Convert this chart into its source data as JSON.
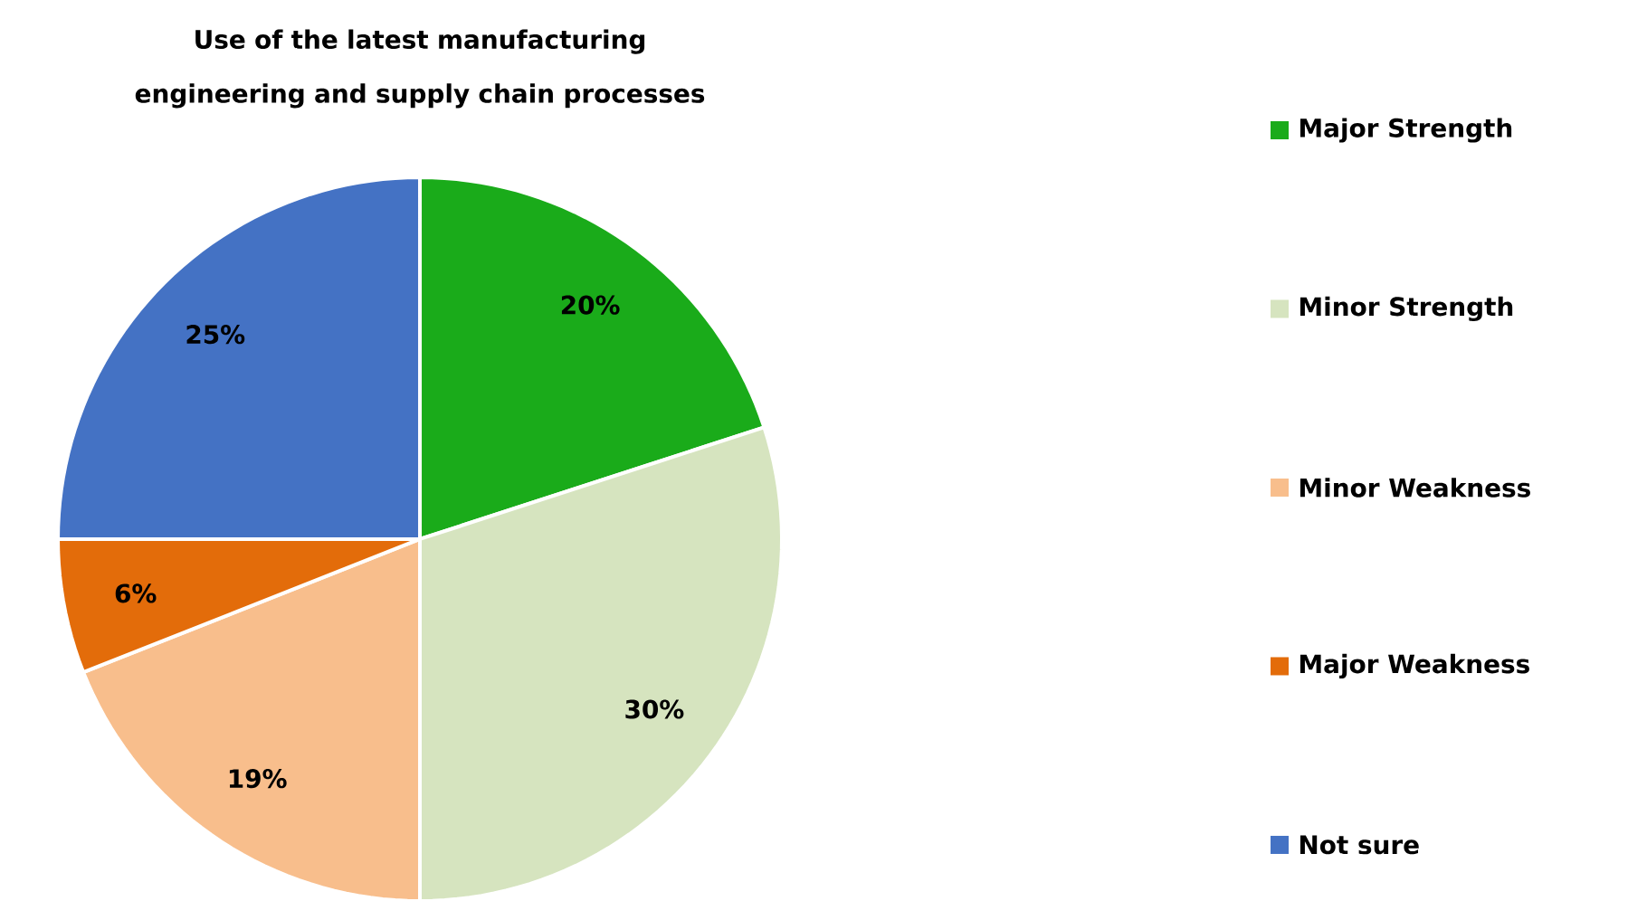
{
  "chart_data": {
    "type": "pie",
    "title": "Use of the latest manufacturing engineering and supply chain processes",
    "categories": [
      "Major Strength",
      "Minor Strength",
      "Minor Weakness",
      "Major Weakness",
      "Not sure"
    ],
    "values": [
      20,
      30,
      19,
      6,
      25
    ],
    "colors": [
      "#1aab1a",
      "#d6e4bf",
      "#f8be8c",
      "#e36c0a",
      "#4472c4"
    ],
    "value_labels": [
      "20%",
      "30%",
      "19%",
      "6%",
      "25%"
    ],
    "legend": "right"
  }
}
